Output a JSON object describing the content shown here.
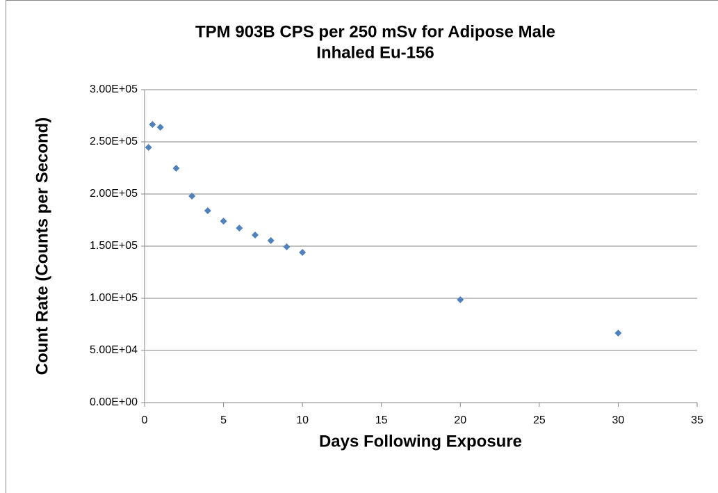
{
  "chart_data": {
    "type": "scatter",
    "title": [
      "TPM 903B CPS per 250 mSv for Adipose Male",
      "Inhaled Eu-156"
    ],
    "x_label": "Days Following Exposure",
    "y_label": "Count Rate (Counts per Second)",
    "color": "#4f81bd",
    "grid": true,
    "x": [
      0.25,
      0.5,
      1,
      2,
      3,
      4,
      5,
      6,
      7,
      8,
      9,
      10,
      20,
      30
    ],
    "values": [
      244667,
      266667,
      264000,
      224667,
      198000,
      184000,
      174000,
      167333,
      160667,
      155333,
      149333,
      144000,
      98667,
      66667
    ],
    "xlim": [
      0,
      35
    ],
    "xticks": [
      0,
      5,
      10,
      15,
      20,
      25,
      30,
      35
    ],
    "ylim": [
      0,
      300000
    ],
    "yticks": [
      {
        "value": 0,
        "label": "0.00E+00"
      },
      {
        "value": 50000,
        "label": "5.00E+04"
      },
      {
        "value": 100000,
        "label": "1.00E+05"
      },
      {
        "value": 150000,
        "label": "1.50E+05"
      },
      {
        "value": 200000,
        "label": "2.00E+05"
      },
      {
        "value": 250000,
        "label": "2.50E+05"
      },
      {
        "value": 300000,
        "label": "3.00E+05"
      }
    ]
  }
}
